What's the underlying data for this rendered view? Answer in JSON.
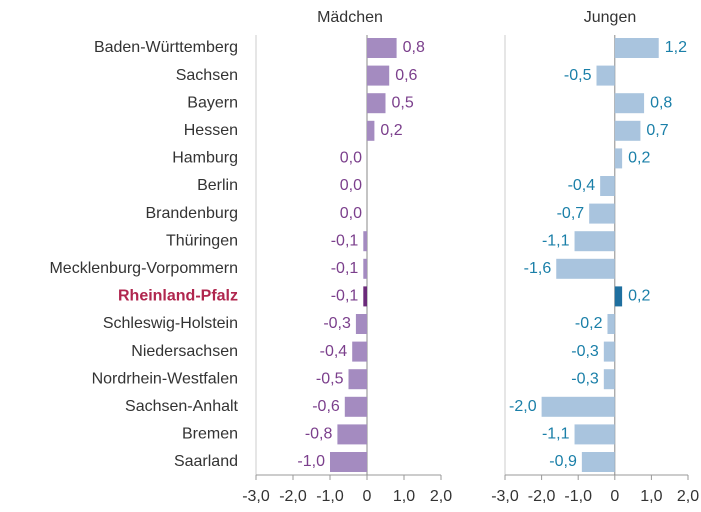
{
  "chart_data": {
    "type": "bar",
    "orientation": "horizontal",
    "categories": [
      "Baden-Württemberg",
      "Sachsen",
      "Bayern",
      "Hessen",
      "Hamburg",
      "Berlin",
      "Brandenburg",
      "Thüringen",
      "Mecklenburg-Vorpommern",
      "Rheinland-Pfalz",
      "Schleswig-Holstein",
      "Niedersachsen",
      "Nordrhein-Westfalen",
      "Sachsen-Anhalt",
      "Bremen",
      "Saarland"
    ],
    "highlight_category_index": 9,
    "highlight_text_color": "#b0264e",
    "series": [
      {
        "name": "Mädchen",
        "color": "#a48bc0",
        "highlight_color": "#6b2a7a",
        "label_color": "#7b3f8c",
        "values": [
          0.8,
          0.6,
          0.5,
          0.2,
          0.0,
          0.0,
          0.0,
          -0.1,
          -0.1,
          -0.1,
          -0.3,
          -0.4,
          -0.5,
          -0.6,
          -0.8,
          -1.0
        ],
        "value_labels": [
          "0,8",
          "0,6",
          "0,5",
          "0,2",
          "0,0",
          "0,0",
          "0,0",
          "-0,1",
          "-0,1",
          "-0,1",
          "-0,3",
          "-0,4",
          "-0,5",
          "-0,6",
          "-0,8",
          "-1,0"
        ]
      },
      {
        "name": "Jungen",
        "color": "#a9c4de",
        "highlight_color": "#1f6f9f",
        "label_color": "#1a7fa8",
        "values": [
          1.2,
          -0.5,
          0.8,
          0.7,
          0.2,
          -0.4,
          -0.7,
          -1.1,
          -1.6,
          0.2,
          -0.2,
          -0.3,
          -0.3,
          -2.0,
          -1.1,
          -0.9
        ],
        "value_labels": [
          "1,2",
          "-0,5",
          "0,8",
          "0,7",
          "0,2",
          "-0,4",
          "-0,7",
          "-1,1",
          "-1,6",
          "0,2",
          "-0,2",
          "-0,3",
          "-0,3",
          "-2,0",
          "-1,1",
          "-0,9"
        ]
      }
    ],
    "xlim": [
      -3,
      2
    ],
    "xticks": [
      {
        "value": -3,
        "label": "-3,0"
      },
      {
        "value": -2,
        "label": "-2,0"
      },
      {
        "value": -1,
        "label": "-1,0"
      },
      0,
      {
        "value": 1,
        "label": "1,0"
      },
      {
        "value": 2,
        "label": "2,0"
      }
    ]
  }
}
